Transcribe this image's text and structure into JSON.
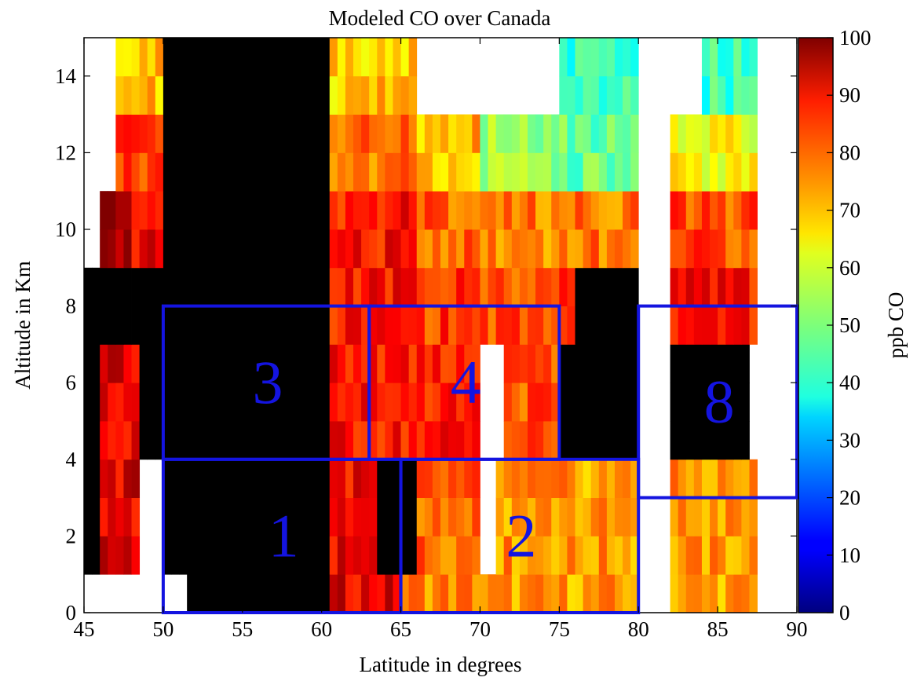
{
  "chart_data": {
    "type": "heatmap",
    "title": "Modeled CO over Canada",
    "xlabel": "Latitude in degrees",
    "ylabel": "Altitude in Km",
    "colorbar_label": "ppb CO",
    "colormap": "jet",
    "xlim": [
      45,
      90
    ],
    "ylim": [
      0,
      15
    ],
    "clim": [
      0,
      100
    ],
    "x_ticks": [
      "45",
      "50",
      "55",
      "60",
      "65",
      "70",
      "75",
      "80",
      "85",
      "90"
    ],
    "y_ticks": [
      "0",
      "2",
      "4",
      "6",
      "8",
      "10",
      "12",
      "14"
    ],
    "colorbar_ticks": [
      "0",
      "10",
      "20",
      "30",
      "40",
      "50",
      "60",
      "70",
      "80",
      "90",
      "100"
    ],
    "cell_size": {
      "lat_deg": 0.5,
      "alt_km": 1.0
    },
    "regions": [
      {
        "label": "1",
        "lat_min": 50,
        "lat_max": 65,
        "alt_min": 0,
        "alt_max": 4
      },
      {
        "label": "2",
        "lat_min": 65,
        "lat_max": 80,
        "alt_min": 0,
        "alt_max": 4
      },
      {
        "label": "3",
        "lat_min": 50,
        "lat_max": 63,
        "alt_min": 4,
        "alt_max": 8
      },
      {
        "label": "4",
        "lat_min": 63,
        "lat_max": 75,
        "alt_min": 4,
        "alt_max": 8
      },
      {
        "label": "8",
        "lat_min": 80,
        "lat_max": 90,
        "alt_min": 3,
        "alt_max": 8
      }
    ],
    "field_by_altitude_band": [
      {
        "alt_band_km": [
          0,
          1
        ],
        "segments": [
          [
            45,
            48.5,
            null
          ],
          [
            48.5,
            50,
            null
          ],
          [
            50,
            51.5,
            null
          ],
          [
            51.5,
            60.5,
            0
          ],
          [
            60.5,
            65,
            90
          ],
          [
            65,
            70,
            75
          ],
          [
            70,
            75,
            72
          ],
          [
            75,
            80,
            72
          ],
          [
            80,
            82,
            null
          ],
          [
            82,
            87.5,
            72
          ],
          [
            87.5,
            90,
            null
          ]
        ]
      },
      {
        "alt_band_km": [
          1,
          4
        ],
        "segments": [
          [
            45,
            46,
            0
          ],
          [
            46,
            48.5,
            90
          ],
          [
            48.5,
            50,
            null
          ],
          [
            50,
            60.5,
            0
          ],
          [
            60.5,
            63.5,
            88
          ],
          [
            63.5,
            66,
            0
          ],
          [
            66,
            70,
            78
          ],
          [
            70,
            71,
            null
          ],
          [
            71,
            75,
            73
          ],
          [
            75,
            80,
            72
          ],
          [
            80,
            82,
            null
          ],
          [
            82,
            87.5,
            72
          ],
          [
            87.5,
            90,
            null
          ]
        ]
      },
      {
        "alt_band_km": [
          4,
          7
        ],
        "segments": [
          [
            45,
            46,
            0
          ],
          [
            46,
            48.5,
            90
          ],
          [
            48.5,
            50,
            0
          ],
          [
            50,
            60.5,
            0
          ],
          [
            60.5,
            65,
            86
          ],
          [
            65,
            70,
            86
          ],
          [
            70,
            71.5,
            null
          ],
          [
            71.5,
            75,
            80
          ],
          [
            75,
            80,
            0
          ],
          [
            80,
            82,
            null
          ],
          [
            82,
            87,
            0
          ],
          [
            87,
            90,
            null
          ]
        ]
      },
      {
        "alt_band_km": [
          7,
          9
        ],
        "segments": [
          [
            45,
            46,
            0
          ],
          [
            46,
            48.5,
            0
          ],
          [
            48.5,
            50,
            0
          ],
          [
            50,
            60.5,
            0
          ],
          [
            60.5,
            66,
            86
          ],
          [
            66,
            70,
            82
          ],
          [
            70,
            76,
            80
          ],
          [
            76,
            80,
            0
          ],
          [
            80,
            82,
            null
          ],
          [
            82,
            87.5,
            86
          ],
          [
            87.5,
            90,
            null
          ]
        ]
      },
      {
        "alt_band_km": [
          9,
          11
        ],
        "segments": [
          [
            45,
            46,
            null
          ],
          [
            46,
            48,
            96
          ],
          [
            48,
            50,
            90
          ],
          [
            50,
            60.5,
            0
          ],
          [
            60.5,
            66,
            86
          ],
          [
            66,
            70,
            78
          ],
          [
            70,
            76,
            75
          ],
          [
            76,
            80,
            76
          ],
          [
            80,
            82,
            null
          ],
          [
            82,
            87.5,
            80
          ],
          [
            87.5,
            90,
            null
          ]
        ]
      },
      {
        "alt_band_km": [
          11,
          13
        ],
        "segments": [
          [
            45,
            47,
            null
          ],
          [
            47,
            50,
            82
          ],
          [
            50,
            60.5,
            0
          ],
          [
            60.5,
            66,
            76
          ],
          [
            66,
            70,
            70
          ],
          [
            70,
            75,
            52
          ],
          [
            75,
            80,
            48
          ],
          [
            80,
            82,
            null
          ],
          [
            82,
            87.5,
            62
          ],
          [
            87.5,
            90,
            null
          ]
        ]
      },
      {
        "alt_band_km": [
          13,
          15
        ],
        "segments": [
          [
            45,
            47,
            null
          ],
          [
            47,
            50,
            70
          ],
          [
            50,
            60.5,
            0
          ],
          [
            60.5,
            66,
            68
          ],
          [
            66,
            70,
            null
          ],
          [
            70,
            75,
            null
          ],
          [
            75,
            80,
            42
          ],
          [
            80,
            84,
            null
          ],
          [
            84,
            87.5,
            44
          ],
          [
            87.5,
            90,
            null
          ]
        ]
      }
    ]
  }
}
